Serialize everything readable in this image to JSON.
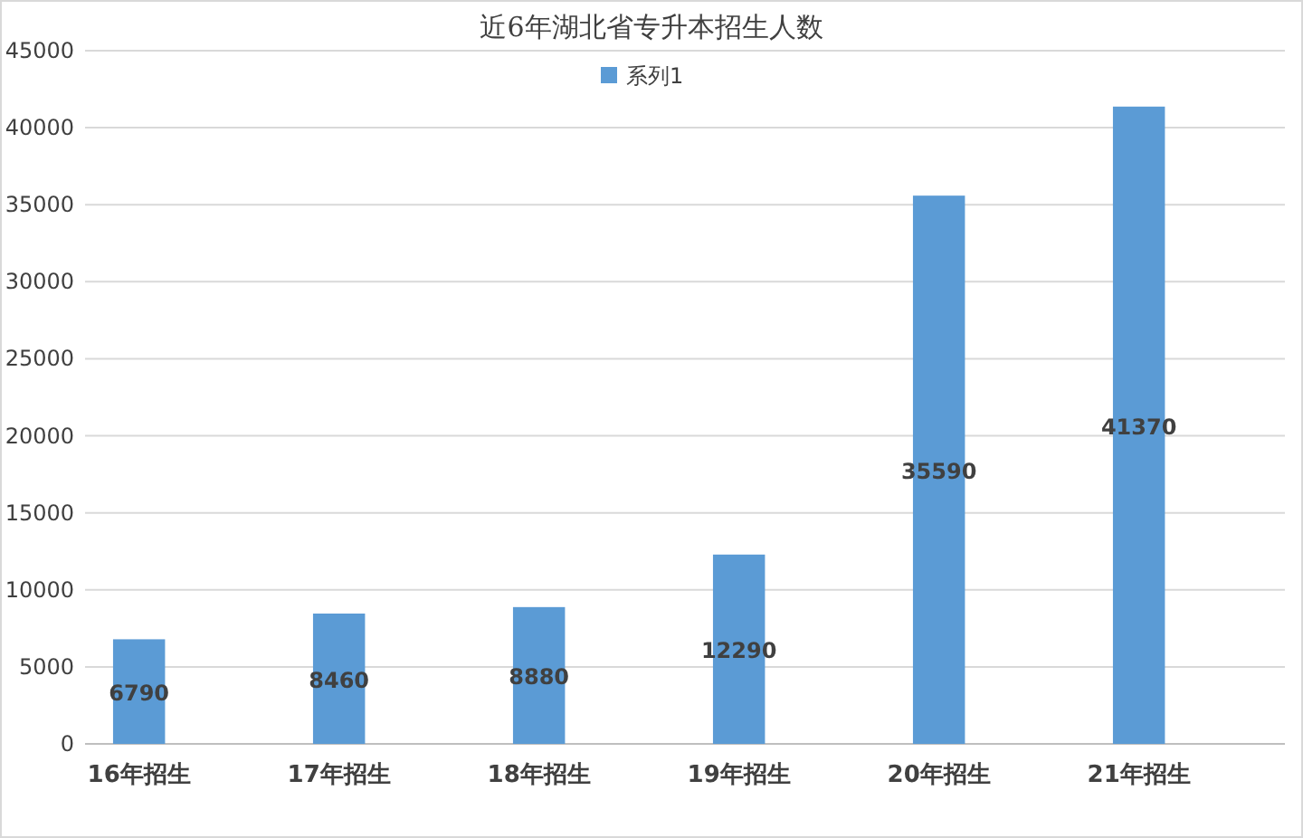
{
  "chart_data": {
    "type": "bar",
    "title": "近6年湖北省专升本招生人数",
    "categories": [
      "16年招生",
      "17年招生",
      "18年招生",
      "19年招生",
      "20年招生",
      "21年招生"
    ],
    "series": [
      {
        "name": "系列1",
        "color": "#5b9bd5",
        "values": [
          6790,
          8460,
          8880,
          12290,
          35590,
          41370
        ]
      }
    ],
    "ylim": [
      0,
      45000
    ],
    "yticks": [
      0,
      5000,
      10000,
      15000,
      20000,
      25000,
      30000,
      35000,
      40000,
      45000
    ],
    "grid": "y",
    "legend": "top",
    "data_labels": true
  }
}
